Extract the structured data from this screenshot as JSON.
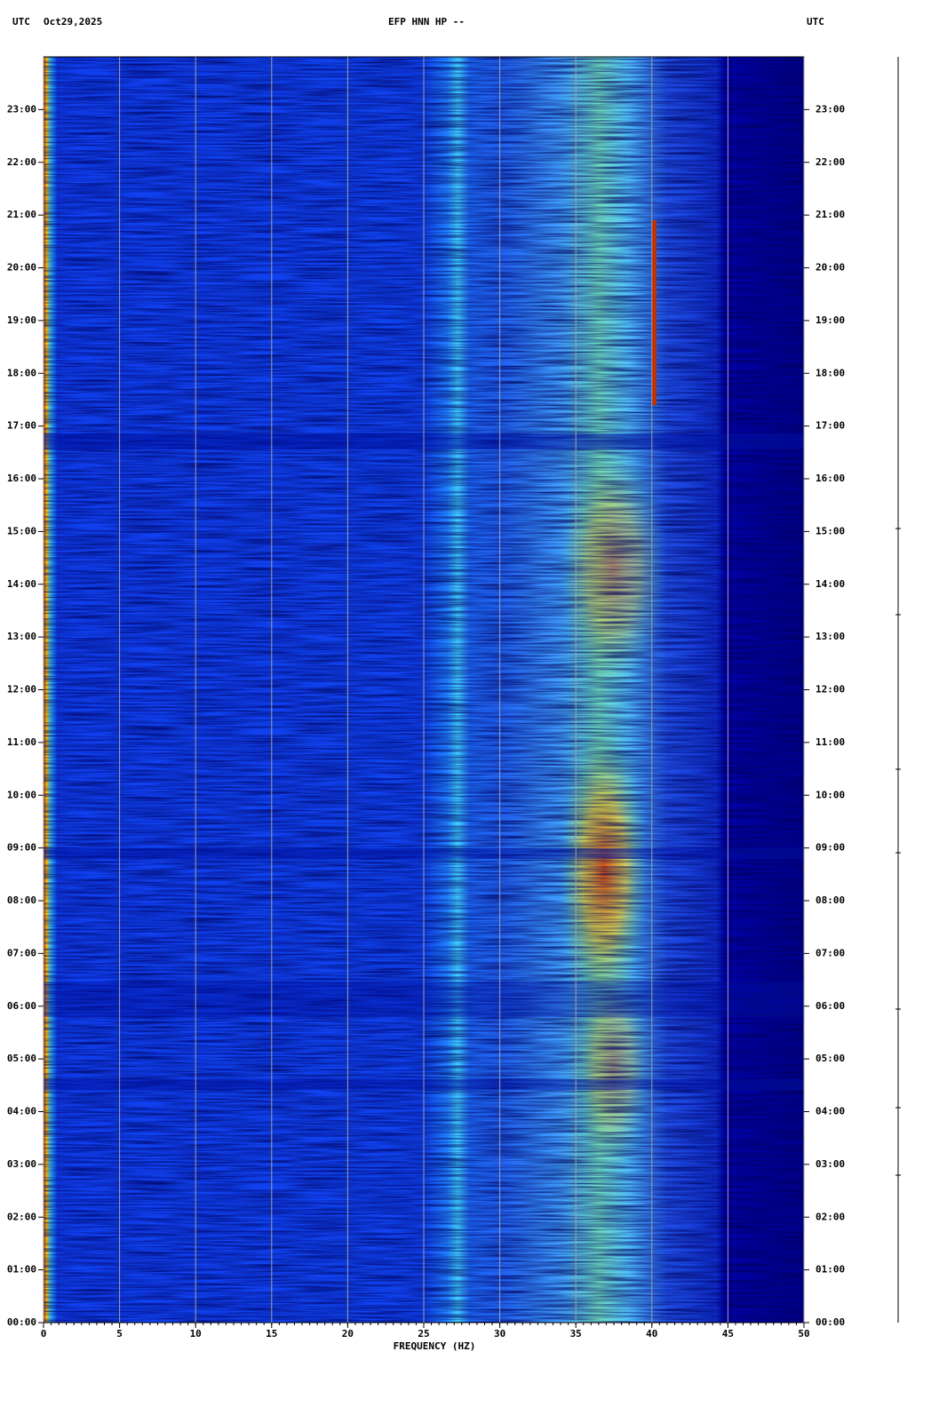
{
  "header": {
    "left": "UTC",
    "date": "Oct29,2025",
    "right": "UTC"
  },
  "chart_data": {
    "type": "spectrogram",
    "title": "EFP HNN HP --",
    "xlabel": "FREQUENCY (HZ)",
    "xlim": [
      0,
      50
    ],
    "xticks": [
      0,
      5,
      10,
      15,
      20,
      25,
      30,
      35,
      40,
      45,
      50
    ],
    "ylim": [
      0,
      24
    ],
    "yticks": [
      {
        "value": 0,
        "label": "00:00"
      },
      {
        "value": 1,
        "label": "01:00"
      },
      {
        "value": 2,
        "label": "02:00"
      },
      {
        "value": 3,
        "label": "03:00"
      },
      {
        "value": 4,
        "label": "04:00"
      },
      {
        "value": 5,
        "label": "05:00"
      },
      {
        "value": 6,
        "label": "06:00"
      },
      {
        "value": 7,
        "label": "07:00"
      },
      {
        "value": 8,
        "label": "08:00"
      },
      {
        "value": 9,
        "label": "09:00"
      },
      {
        "value": 10,
        "label": "10:00"
      },
      {
        "value": 11,
        "label": "11:00"
      },
      {
        "value": 12,
        "label": "12:00"
      },
      {
        "value": 13,
        "label": "13:00"
      },
      {
        "value": 14,
        "label": "14:00"
      },
      {
        "value": 15,
        "label": "15:00"
      },
      {
        "value": 16,
        "label": "16:00"
      },
      {
        "value": 17,
        "label": "17:00"
      },
      {
        "value": 18,
        "label": "18:00"
      },
      {
        "value": 19,
        "label": "19:00"
      },
      {
        "value": 20,
        "label": "20:00"
      },
      {
        "value": 21,
        "label": "21:00"
      },
      {
        "value": 22,
        "label": "22:00"
      },
      {
        "value": 23,
        "label": "23:00"
      }
    ],
    "grid": true
  }
}
